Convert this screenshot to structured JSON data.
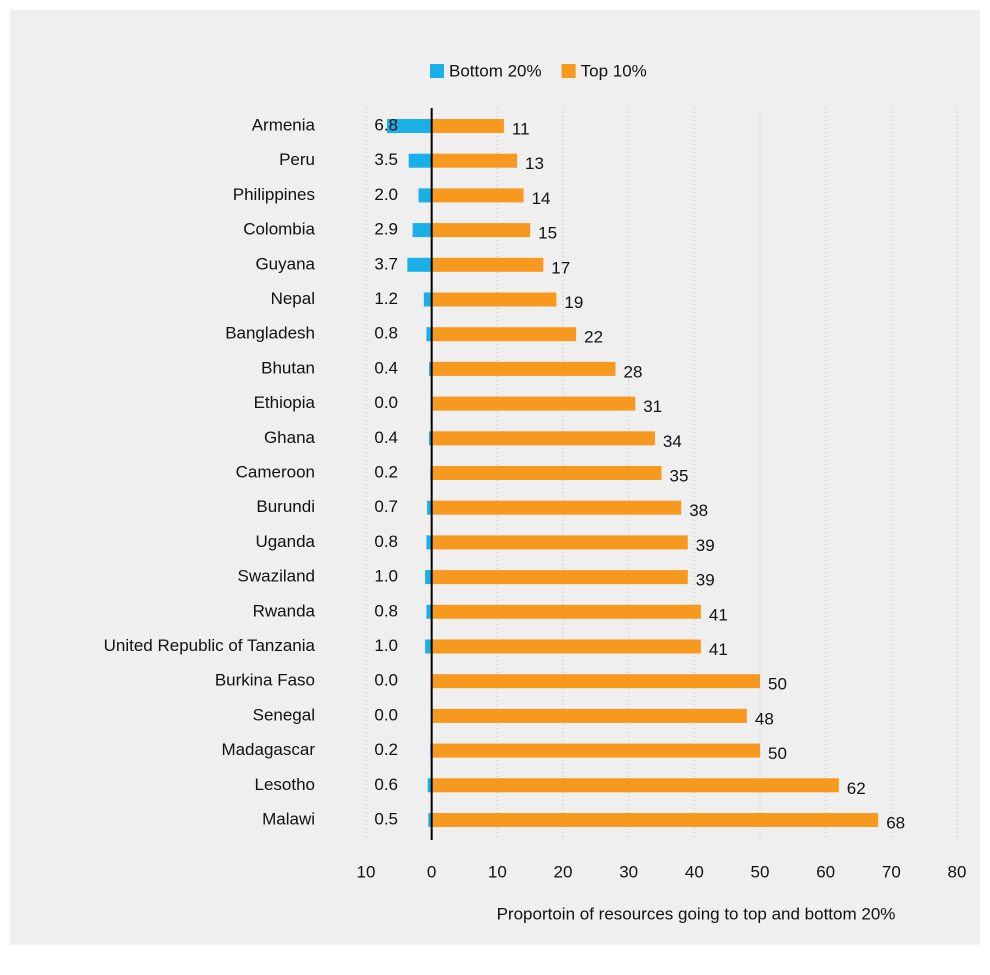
{
  "chart_data": {
    "type": "diverging-bar",
    "xlabel": "Proportoin of resources going to top and bottom 20%",
    "categories": [
      "Armenia",
      "Peru",
      "Philippines",
      "Colombia",
      "Guyana",
      "Nepal",
      "Bangladesh",
      "Bhutan",
      "Ethiopia",
      "Ghana",
      "Cameroon",
      "Burundi",
      "Uganda",
      "Swaziland",
      "Rwanda",
      "United Republic of Tanzania",
      "Burkina Faso",
      "Senegal",
      "Madagascar",
      "Lesotho",
      "Malawi"
    ],
    "series": [
      {
        "name": "Bottom 20%",
        "color": "#1aafe6",
        "values": [
          -6.8,
          -3.5,
          -2.0,
          -2.9,
          -3.7,
          -1.2,
          -0.8,
          -0.4,
          0,
          -0.4,
          -0.2,
          -0.7,
          -0.8,
          -1.0,
          -0.8,
          -1.0,
          0,
          0,
          -0.2,
          -0.6,
          -0.5
        ],
        "value_labels": [
          "6.8",
          "3.5",
          "2.0",
          "2.9",
          "3.7",
          "1.2",
          "0.8",
          "0.4",
          "0.0",
          "0.4",
          "0.2",
          "0.7",
          "0.8",
          "1.0",
          "0.8",
          "1.0",
          "0.0",
          "0.0",
          "0.2",
          "0.6",
          "0.5"
        ]
      },
      {
        "name": "Top 10%",
        "color": "#f7991f",
        "values": [
          11,
          13,
          14,
          15,
          17,
          19,
          22,
          28,
          31,
          34,
          35,
          38,
          39,
          39,
          41,
          41,
          50,
          48,
          50,
          62,
          68
        ]
      }
    ],
    "xlim": [
      -10,
      80
    ],
    "xticks": [
      {
        "value": -10,
        "label": "10"
      },
      0,
      10,
      20,
      30,
      40,
      50,
      60,
      70,
      80
    ],
    "grid": true,
    "legend": "top"
  }
}
